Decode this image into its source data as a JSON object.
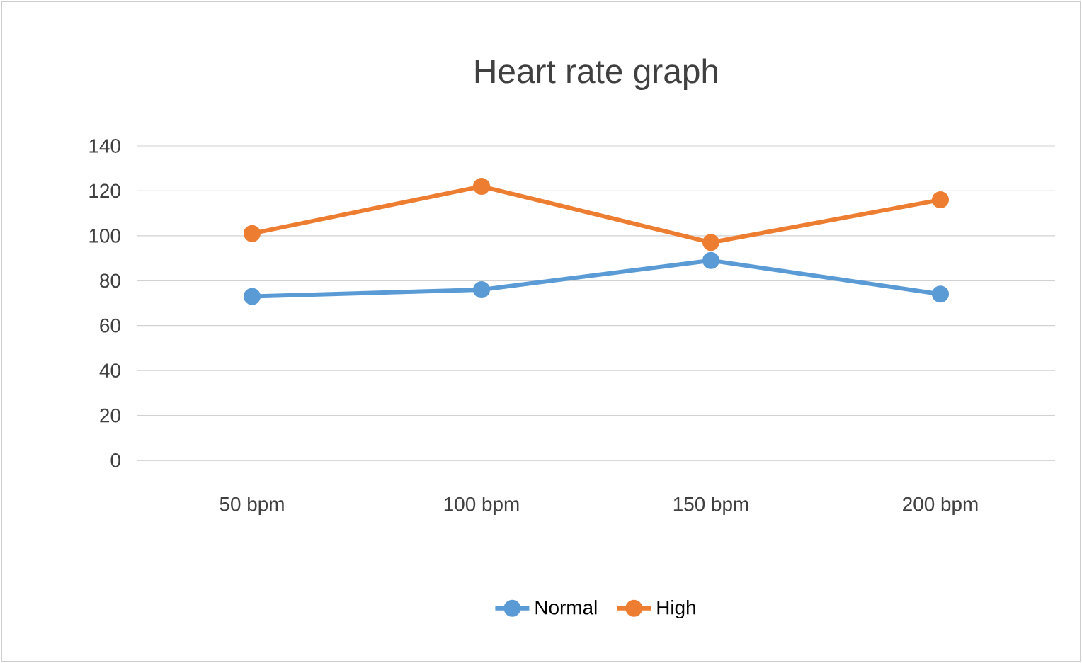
{
  "chart_data": {
    "type": "line",
    "title": "Heart rate graph",
    "categories": [
      "50 bpm",
      "100 bpm",
      "150 bpm",
      "200 bpm"
    ],
    "series": [
      {
        "name": "Normal",
        "color": "#5b9bd5",
        "values": [
          73,
          76,
          89,
          74
        ]
      },
      {
        "name": "High",
        "color": "#ed7d31",
        "values": [
          101,
          122,
          97,
          116
        ]
      }
    ],
    "ylim": [
      0,
      140
    ],
    "yticks": [
      0,
      20,
      40,
      60,
      80,
      100,
      120,
      140
    ],
    "grid": "y",
    "legend": "bottom",
    "marker": "circle",
    "line_style": "solid"
  }
}
